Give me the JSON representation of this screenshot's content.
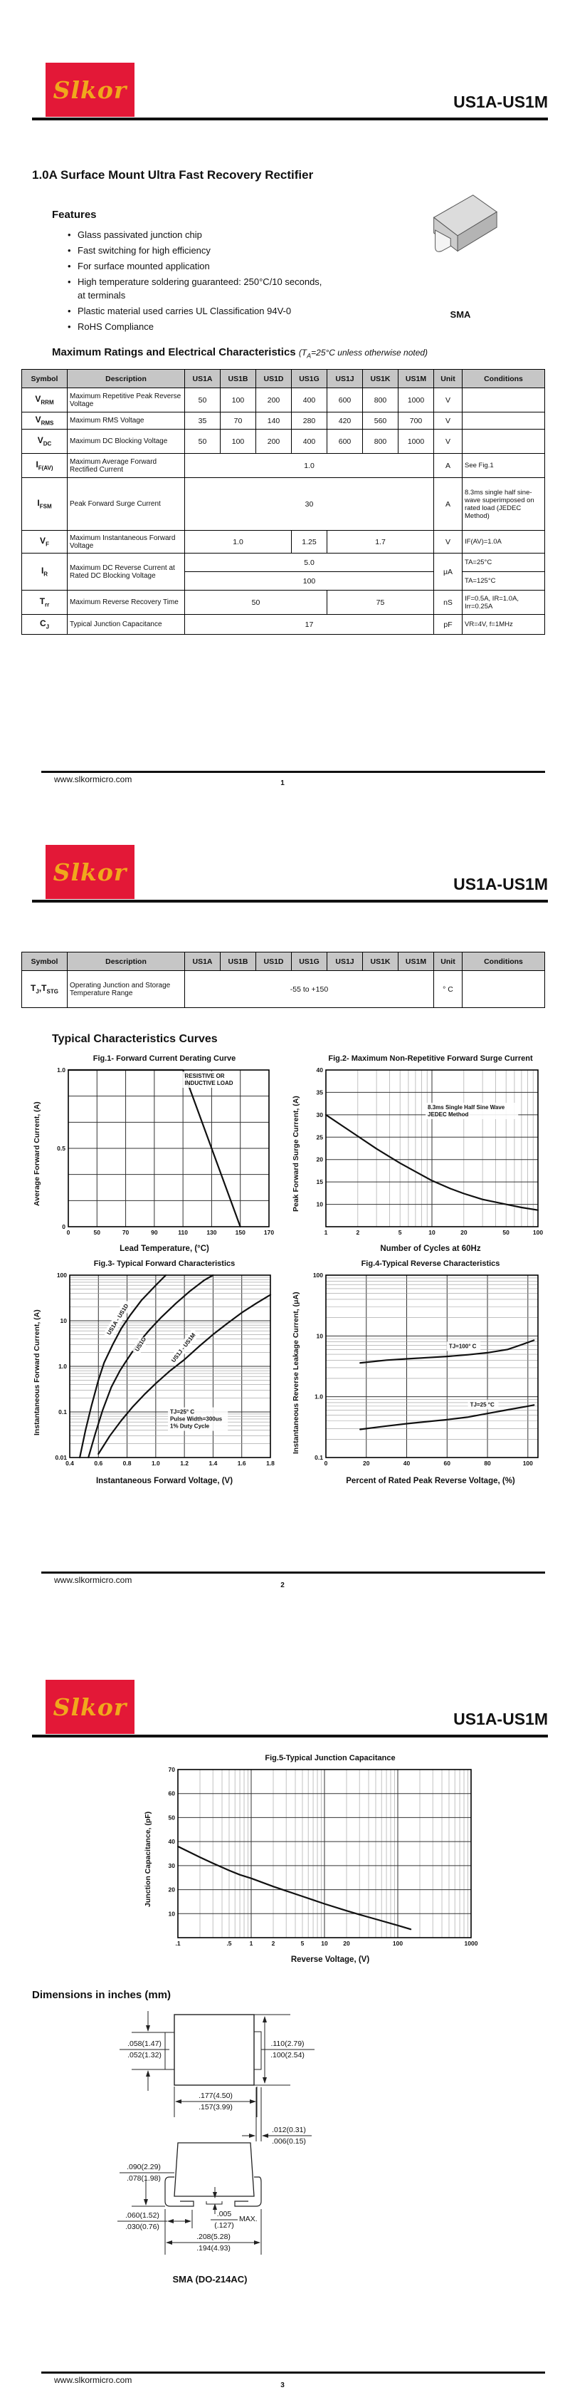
{
  "brand": {
    "logo_text": "Slkor",
    "part_number": "US1A-US1M",
    "website": "www.slkormicro.com",
    "logo_bg": "#e31837",
    "logo_fg": "#f0a81c"
  },
  "page1": {
    "subtitle": "1.0A Surface Mount Ultra Fast Recovery Rectifier",
    "features_heading": "Features",
    "features": [
      "Glass passivated junction chip",
      "Fast switching for high efficiency",
      "For surface mounted application",
      "High temperature soldering guaranteed: 250°C/10 seconds, at terminals",
      "Plastic material used carries UL Classification 94V-0",
      "RoHS Compliance"
    ],
    "package_label": "SMA",
    "ratings_heading": "Maximum Ratings and Electrical Characteristics",
    "ratings_note_pre": "(T",
    "ratings_note_sub": "A",
    "ratings_note_post": "=25°C unless otherwise noted)",
    "page_number": "1"
  },
  "table": {
    "headers": [
      "Symbol",
      "Description",
      "US1A",
      "US1B",
      "US1D",
      "US1G",
      "US1J",
      "US1K",
      "US1M",
      "Unit",
      "Conditions"
    ],
    "rows": {
      "vrrm": {
        "sym": "V",
        "sub": "RRM",
        "desc": "Maximum Repetitive Peak Reverse Voltage",
        "v": [
          "50",
          "100",
          "200",
          "400",
          "600",
          "800",
          "1000"
        ],
        "unit": "V",
        "cond": ""
      },
      "vrms": {
        "sym": "V",
        "sub": "RMS",
        "desc": "Maximum RMS Voltage",
        "v": [
          "35",
          "70",
          "140",
          "280",
          "420",
          "560",
          "700"
        ],
        "unit": "V",
        "cond": ""
      },
      "vdc": {
        "sym": "V",
        "sub": "DC",
        "desc": "Maximum DC Blocking Voltage",
        "v": [
          "50",
          "100",
          "200",
          "400",
          "600",
          "800",
          "1000"
        ],
        "unit": "V",
        "cond": ""
      },
      "ifav": {
        "sym": "I",
        "sub": "F(AV)",
        "desc": "Maximum Average Forward Rectified Current",
        "v": "1.0",
        "unit": "A",
        "cond": "See Fig.1"
      },
      "ifsm": {
        "sym": "I",
        "sub": "FSM",
        "desc": "Peak Forward Surge Current",
        "v": "30",
        "unit": "A",
        "cond": "8.3ms single half sine-wave superimposed on rated load (JEDEC Method)"
      },
      "vf": {
        "sym": "V",
        "sub": "F",
        "desc": "Maximum Instantaneous Forward Voltage",
        "v1": "1.0",
        "v2": "1.25",
        "v3": "1.7",
        "unit": "V",
        "cond": "IF(AV)=1.0A"
      },
      "ir": {
        "sym": "I",
        "sub": "R",
        "desc": "Maximum DC Reverse Current at Rated DC Blocking Voltage",
        "va": "5.0",
        "vb": "100",
        "unit": "μA",
        "conda": "TA=25°C",
        "condb": "TA=125°C"
      },
      "trr": {
        "sym": "T",
        "sub": "rr",
        "desc": "Maximum Reverse Recovery Time",
        "v1": "50",
        "v2": "75",
        "unit": "nS",
        "cond": "IF=0.5A, IR=1.0A, Irr=0.25A"
      },
      "cj": {
        "sym": "C",
        "sub": "J",
        "desc": "Typical Junction Capacitance",
        "v": "17",
        "unit": "pF",
        "cond": "VR=4V, f=1MHz"
      }
    }
  },
  "page2": {
    "row_tj": {
      "sym1": "T",
      "sub1": "J",
      "comma": ",",
      "sym2": "T",
      "sub2": "STG",
      "desc": "Operating Junction and Storage Temperature Range",
      "v": "-55 to +150",
      "unit": "° C",
      "cond": ""
    },
    "curves_heading": "Typical Characteristics Curves",
    "page_number": "2"
  },
  "page3": {
    "dims_heading": "Dimensions in inches (mm)",
    "caption": "SMA (DO-214AC)",
    "page_number": "3",
    "dims": {
      "d1": {
        "top": ".058(1.47)",
        "bottom": ".052(1.32)"
      },
      "d2": {
        "top": ".110(2.79)",
        "bottom": ".100(2.54)"
      },
      "d3": {
        "top": ".177(4.50)",
        "bottom": ".157(3.99)"
      },
      "d4": {
        "top": ".012(0.31)",
        "bottom": ".006(0.15)"
      },
      "d5": {
        "top": ".090(2.29)",
        "bottom": ".078(1.98)"
      },
      "d6": {
        "top": ".060(1.52)",
        "bottom": ".030(0.76)"
      },
      "d7": {
        "top": ".005",
        "bottom": "(.127)",
        "suffix": "MAX."
      },
      "d8": {
        "top": ".208(5.28)",
        "bottom": ".194(4.93)"
      }
    }
  },
  "chart_data": [
    {
      "type": "line",
      "title": "Fig.1- Forward Current Derating Curve",
      "xlabel": "Lead Temperature, (°C)",
      "ylabel": "Average Forward Current, (A)",
      "x": {
        "type": "category",
        "labels": [
          "0",
          "50",
          "70",
          "90",
          "110",
          "130",
          "150",
          "170"
        ]
      },
      "y": {
        "type": "linear",
        "min": 0,
        "max": 1,
        "ticks": [
          {
            "v": 0,
            "l": "0"
          },
          {
            "v": 0.5,
            "l": "0.5"
          },
          {
            "v": 1,
            "l": "1.0"
          }
        ],
        "grid": [
          0.1667,
          0.3333,
          0.5,
          0.6667,
          0.8333
        ]
      },
      "series": [
        {
          "name": "derating",
          "points": [
            [
              0,
              1
            ],
            [
              4,
              1
            ],
            [
              6,
              0
            ]
          ]
        }
      ],
      "annotations": [
        {
          "text": "RESISTIVE OR\nINDUCTIVE LOAD",
          "fx": 0.58,
          "fy": 0.05
        }
      ]
    },
    {
      "type": "line",
      "title": "Fig.2- Maximum Non-Repetitive Forward Surge Current",
      "xlabel": "Number of Cycles at 60Hz",
      "ylabel": "Peak Forward Surge Current, (A)",
      "x": {
        "type": "log",
        "min": 1,
        "max": 100,
        "ticks": [
          {
            "v": 1,
            "l": "1"
          },
          {
            "v": 2,
            "l": "2"
          },
          {
            "v": 5,
            "l": "5"
          },
          {
            "v": 10,
            "l": "10"
          },
          {
            "v": 20,
            "l": "20"
          },
          {
            "v": 50,
            "l": "50"
          },
          {
            "v": 100,
            "l": "100"
          }
        ]
      },
      "y": {
        "type": "linear",
        "min": 5,
        "max": 40,
        "ticks": [
          {
            "v": 10,
            "l": "10"
          },
          {
            "v": 15,
            "l": "15"
          },
          {
            "v": 20,
            "l": "20"
          },
          {
            "v": 25,
            "l": "25"
          },
          {
            "v": 30,
            "l": "30"
          },
          {
            "v": 35,
            "l": "35"
          },
          {
            "v": 40,
            "l": "40"
          }
        ],
        "grid": [
          10,
          15,
          20,
          25,
          30,
          35
        ]
      },
      "series": [
        {
          "name": "surge",
          "points": [
            [
              1,
              30
            ],
            [
              1.5,
              27.2
            ],
            [
              2,
              25.2
            ],
            [
              3,
              22.4
            ],
            [
              4,
              20.6
            ],
            [
              5,
              19.2
            ],
            [
              7,
              17.3
            ],
            [
              10,
              15.3
            ],
            [
              15,
              13.5
            ],
            [
              20,
              12.4
            ],
            [
              30,
              11.1
            ],
            [
              50,
              10
            ],
            [
              70,
              9.3
            ],
            [
              100,
              8.7
            ]
          ]
        }
      ],
      "annotations": [
        {
          "text": "8.3ms Single Half Sine Wave\nJEDEC Method",
          "fx": 0.48,
          "fy": 0.25
        }
      ]
    },
    {
      "type": "line",
      "title": "Fig.3- Typical Forward Characteristics",
      "xlabel": "Instantaneous Forward Voltage, (V)",
      "ylabel": "Instantaneous Forward Current, (A)",
      "x": {
        "type": "linear",
        "min": 0.4,
        "max": 1.8,
        "ticks": [
          {
            "v": 0.4,
            "l": "0.4"
          },
          {
            "v": 0.6,
            "l": "0.6"
          },
          {
            "v": 0.8,
            "l": "0.8"
          },
          {
            "v": 1,
            "l": "1.0"
          },
          {
            "v": 1.2,
            "l": "1.2"
          },
          {
            "v": 1.4,
            "l": "1.4"
          },
          {
            "v": 1.6,
            "l": "1.6"
          },
          {
            "v": 1.8,
            "l": "1.8"
          }
        ],
        "grid": [
          0.6,
          0.8,
          1.0,
          1.2,
          1.4,
          1.6
        ]
      },
      "y": {
        "type": "log",
        "min": 0.01,
        "max": 100,
        "ticks": [
          {
            "v": 0.01,
            "l": "0.01"
          },
          {
            "v": 0.1,
            "l": "0.1"
          },
          {
            "v": 1,
            "l": "1.0"
          },
          {
            "v": 10,
            "l": "10"
          },
          {
            "v": 100,
            "l": "100"
          }
        ]
      },
      "series": [
        {
          "name": "US1A - US1D",
          "points": [
            [
              0.47,
              0.01
            ],
            [
              0.51,
              0.04
            ],
            [
              0.55,
              0.13
            ],
            [
              0.6,
              0.5
            ],
            [
              0.64,
              1.2
            ],
            [
              0.7,
              3
            ],
            [
              0.76,
              6.8
            ],
            [
              0.82,
              13
            ],
            [
              0.9,
              28
            ],
            [
              1.0,
              60
            ],
            [
              1.07,
              100
            ]
          ]
        },
        {
          "name": "US1G",
          "points": [
            [
              0.53,
              0.01
            ],
            [
              0.58,
              0.035
            ],
            [
              0.63,
              0.11
            ],
            [
              0.69,
              0.35
            ],
            [
              0.75,
              0.8
            ],
            [
              0.8,
              1.4
            ],
            [
              0.88,
              3.3
            ],
            [
              0.96,
              6.5
            ],
            [
              1.04,
              12
            ],
            [
              1.14,
              24
            ],
            [
              1.24,
              45
            ],
            [
              1.34,
              78
            ],
            [
              1.4,
              100
            ]
          ]
        },
        {
          "name": "US1J - US1M",
          "points": [
            [
              0.6,
              0.012
            ],
            [
              0.68,
              0.03
            ],
            [
              0.76,
              0.065
            ],
            [
              0.84,
              0.13
            ],
            [
              0.92,
              0.24
            ],
            [
              1.0,
              0.42
            ],
            [
              1.1,
              0.8
            ],
            [
              1.2,
              1.4
            ],
            [
              1.3,
              2.7
            ],
            [
              1.4,
              5
            ],
            [
              1.5,
              8.8
            ],
            [
              1.6,
              15
            ],
            [
              1.7,
              24
            ],
            [
              1.8,
              37
            ]
          ]
        }
      ],
      "annotations": [
        {
          "text": "TJ=25° C\nPulse Width=300us\n1% Duty Cycle",
          "fx": 0.5,
          "fy": 0.76
        },
        {
          "text": "US1A - US1D",
          "fx": 0.2,
          "fy": 0.33,
          "rot": -58
        },
        {
          "text": "US1G",
          "fx": 0.34,
          "fy": 0.42,
          "rot": -58
        },
        {
          "text": "US1J - US1M",
          "fx": 0.52,
          "fy": 0.48,
          "rot": -52
        }
      ]
    },
    {
      "type": "line",
      "title": "Fig.4-Typical Reverse Characteristics",
      "xlabel": "Percent of Rated Peak Reverse Voltage, (%)",
      "ylabel": "Instantaneous Reverse Leakage Current, (μA)",
      "x": {
        "type": "linear",
        "min": 0,
        "max": 105,
        "ticks": [
          {
            "v": 0,
            "l": "0"
          },
          {
            "v": 20,
            "l": "20"
          },
          {
            "v": 40,
            "l": "40"
          },
          {
            "v": 60,
            "l": "60"
          },
          {
            "v": 80,
            "l": "80"
          },
          {
            "v": 100,
            "l": "100"
          }
        ],
        "grid": [
          20,
          40,
          60,
          80,
          100
        ]
      },
      "y": {
        "type": "log",
        "min": 0.1,
        "max": 100,
        "ticks": [
          {
            "v": 0.1,
            "l": "0.1"
          },
          {
            "v": 1,
            "l": "1.0"
          },
          {
            "v": 10,
            "l": "10"
          },
          {
            "v": 100,
            "l": "100"
          }
        ]
      },
      "series": [
        {
          "name": "TJ=100°C",
          "points": [
            [
              17,
              3.6
            ],
            [
              30,
              4.0
            ],
            [
              40,
              4.2
            ],
            [
              50,
              4.4
            ],
            [
              60,
              4.6
            ],
            [
              70,
              4.9
            ],
            [
              80,
              5.3
            ],
            [
              90,
              6.0
            ],
            [
              97,
              7.2
            ],
            [
              103,
              8.5
            ]
          ]
        },
        {
          "name": "TJ=25°C",
          "points": [
            [
              17,
              0.29
            ],
            [
              30,
              0.33
            ],
            [
              40,
              0.36
            ],
            [
              50,
              0.39
            ],
            [
              60,
              0.42
            ],
            [
              70,
              0.46
            ],
            [
              80,
              0.53
            ],
            [
              90,
              0.61
            ],
            [
              100,
              0.7
            ],
            [
              103,
              0.73
            ]
          ]
        }
      ],
      "annotations": [
        {
          "text": "TJ=100° C",
          "fx": 0.58,
          "fy": 0.4
        },
        {
          "text": "TJ=25 °C",
          "fx": 0.68,
          "fy": 0.72
        }
      ]
    },
    {
      "type": "line",
      "title": "Fig.5-Typical Junction Capacitance",
      "xlabel": "Reverse Voltage, (V)",
      "ylabel": "Junction Capacitance, (pF)",
      "x": {
        "type": "log",
        "min": 0.1,
        "max": 1000,
        "ticks": [
          {
            "v": 0.1,
            "l": ".1"
          },
          {
            "v": 0.5,
            "l": ".5"
          },
          {
            "v": 1,
            "l": "1"
          },
          {
            "v": 2,
            "l": "2"
          },
          {
            "v": 5,
            "l": "5"
          },
          {
            "v": 10,
            "l": "10"
          },
          {
            "v": 20,
            "l": "20"
          },
          {
            "v": 100,
            "l": "100"
          },
          {
            "v": 1000,
            "l": "1000"
          }
        ]
      },
      "y": {
        "type": "linear",
        "min": 0,
        "max": 70,
        "ticks": [
          {
            "v": 10,
            "l": "10"
          },
          {
            "v": 20,
            "l": "20"
          },
          {
            "v": 30,
            "l": "30"
          },
          {
            "v": 40,
            "l": "40"
          },
          {
            "v": 50,
            "l": "50"
          },
          {
            "v": 60,
            "l": "60"
          },
          {
            "v": 70,
            "l": "70"
          }
        ],
        "grid": [
          10,
          20,
          30,
          40,
          50,
          60
        ]
      },
      "series": [
        {
          "name": "Cj",
          "points": [
            [
              0.1,
              38
            ],
            [
              0.2,
              33.5
            ],
            [
              0.3,
              31
            ],
            [
              0.5,
              28
            ],
            [
              0.7,
              26.2
            ],
            [
              1,
              24.7
            ],
            [
              2,
              21.3
            ],
            [
              3,
              19.5
            ],
            [
              5,
              17.2
            ],
            [
              7,
              15.7
            ],
            [
              10,
              14.1
            ],
            [
              20,
              11.2
            ],
            [
              30,
              9.6
            ],
            [
              50,
              7.7
            ],
            [
              100,
              5.1
            ],
            [
              150,
              3.5
            ]
          ]
        }
      ]
    }
  ]
}
